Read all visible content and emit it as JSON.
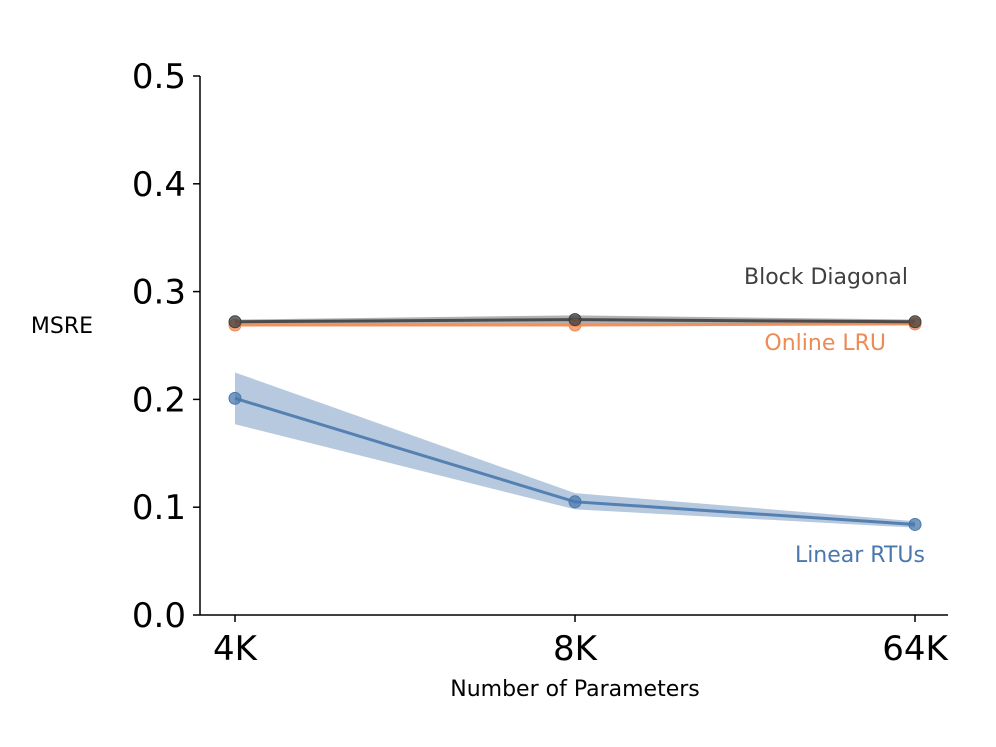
{
  "chart_data": {
    "type": "line",
    "title": "",
    "xlabel": "Number of Parameters",
    "ylabel": "MSRE",
    "categories": [
      "4K",
      "8K",
      "64K"
    ],
    "ylim": [
      0,
      0.5
    ],
    "yticks": [
      "0.0",
      "0.1",
      "0.2",
      "0.3",
      "0.4",
      "0.5"
    ],
    "ytick_values": [
      0.0,
      0.1,
      0.2,
      0.3,
      0.4,
      0.5
    ],
    "grid": false,
    "legend": "inline labels at right end of each line",
    "series": [
      {
        "name": "Block Diagonal",
        "color": "#3f3f3f",
        "values": [
          0.272,
          0.274,
          0.272
        ],
        "lower": [
          0.27,
          0.27,
          0.27
        ],
        "upper": [
          0.274,
          0.278,
          0.274
        ]
      },
      {
        "name": "Online LRU",
        "color": "#ee8a54",
        "values": [
          0.269,
          0.269,
          0.27
        ],
        "lower": [
          0.268,
          0.268,
          0.269
        ],
        "upper": [
          0.27,
          0.27,
          0.271
        ]
      },
      {
        "name": "Linear RTUs",
        "color": "#4a78ad",
        "values": [
          0.201,
          0.105,
          0.084
        ],
        "lower": [
          0.177,
          0.098,
          0.081
        ],
        "upper": [
          0.225,
          0.113,
          0.087
        ]
      }
    ]
  }
}
